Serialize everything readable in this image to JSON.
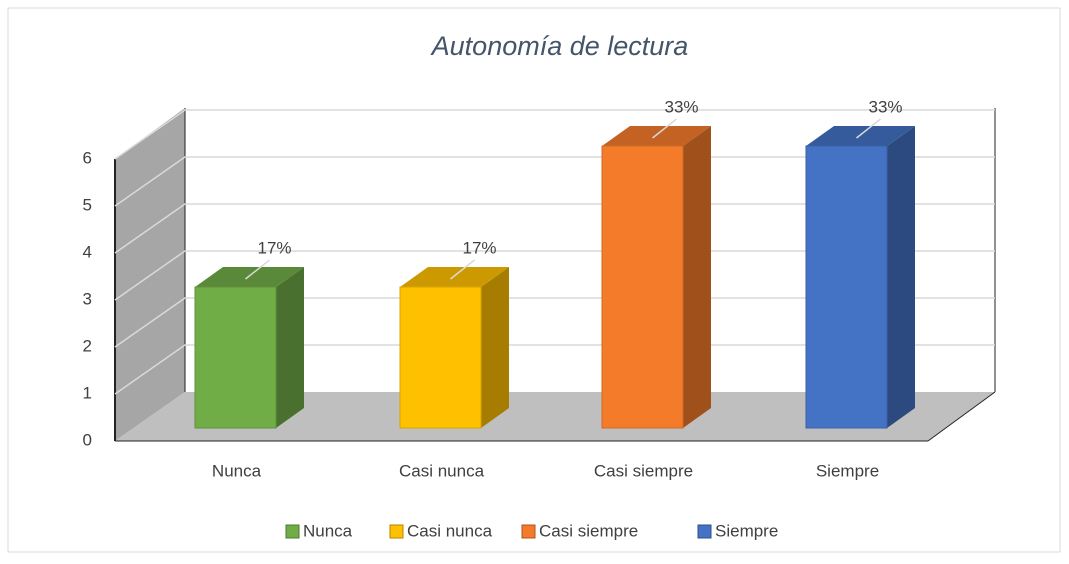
{
  "chart_data": {
    "type": "bar3d",
    "title": "Autonomía de lectura",
    "categories": [
      "Nunca",
      "Casi nunca",
      "Casi siempre",
      "Siempre"
    ],
    "values": [
      3,
      3,
      6,
      6
    ],
    "value_labels": [
      "17%",
      "17%",
      "33%",
      "33%"
    ],
    "colors": [
      "#70ad47",
      "#ffc000",
      "#f47b2a",
      "#4472c4"
    ],
    "ylim": [
      0,
      6
    ],
    "yticks": [
      0,
      1,
      2,
      3,
      4,
      5,
      6
    ],
    "grid": true,
    "legend": "bottom"
  }
}
